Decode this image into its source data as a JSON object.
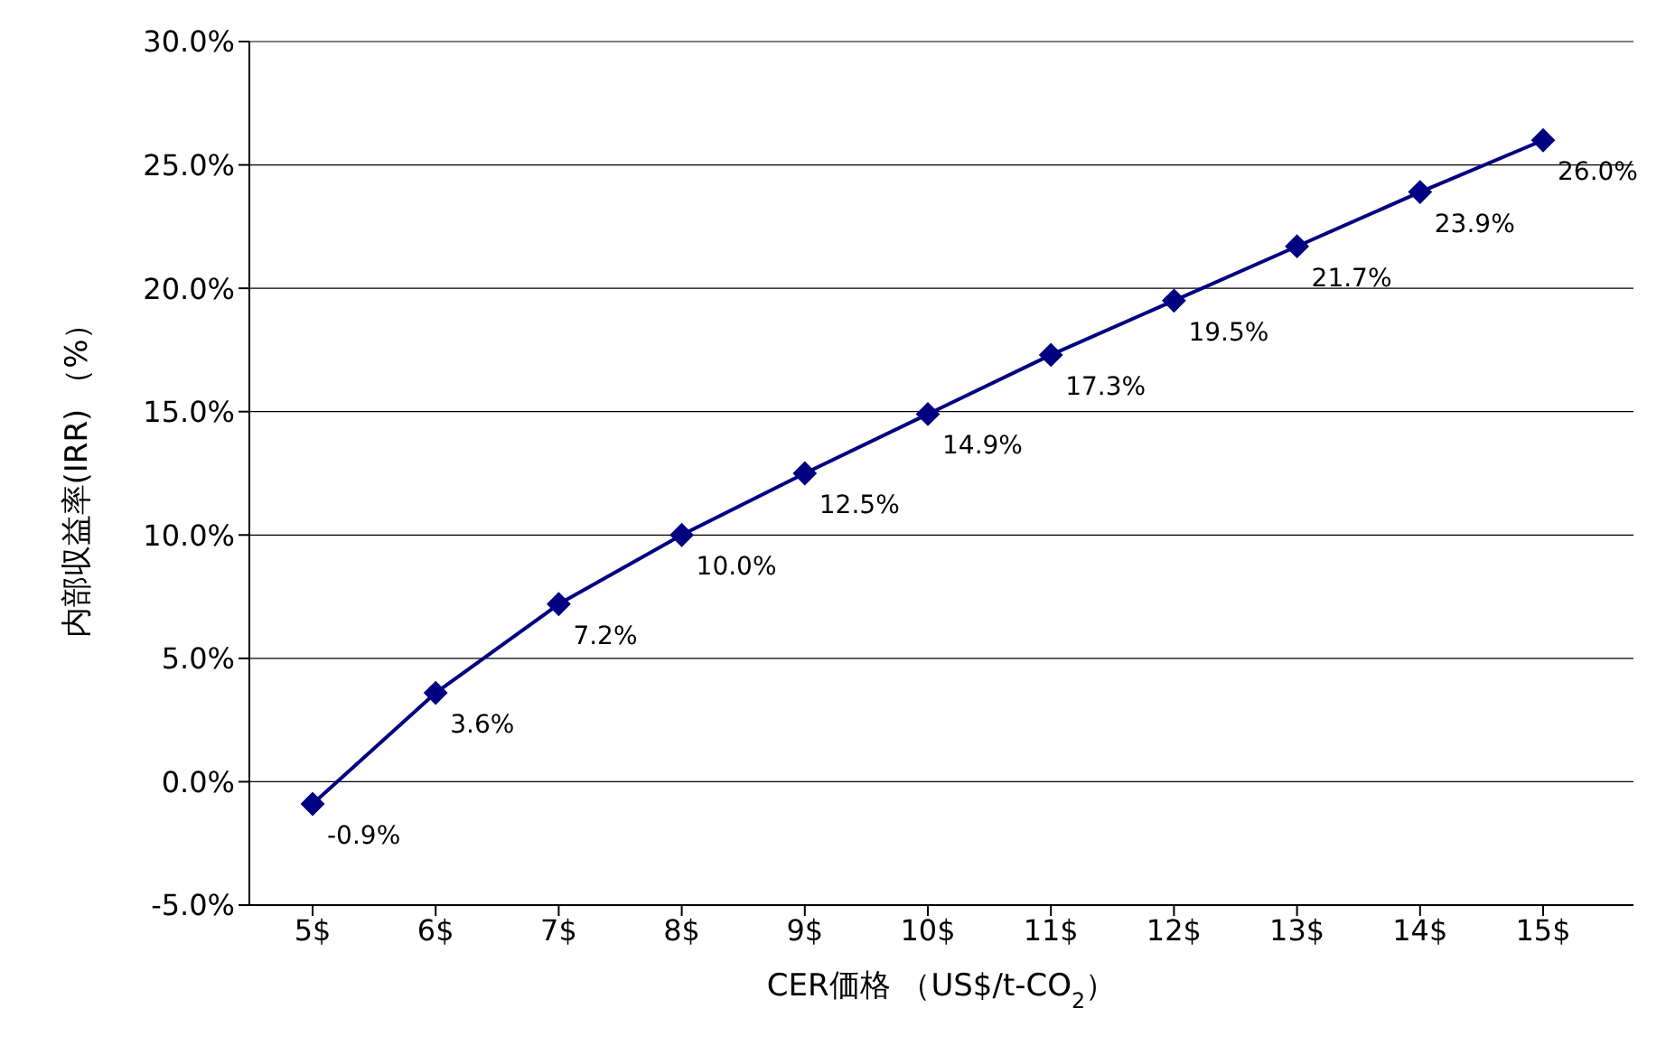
{
  "chart_data": {
    "type": "line",
    "xlabel": "CER価格 （US$/t-CO$_{2}$）",
    "ylabel": "内部収益率(IRR) （%）",
    "categories": [
      "5$",
      "6$",
      "7$",
      "8$",
      "9$",
      "10$",
      "11$",
      "12$",
      "13$",
      "14$",
      "15$"
    ],
    "series": [
      {
        "color": "#000080",
        "values": [
          -0.9,
          3.6,
          7.2,
          10.0,
          12.5,
          14.9,
          17.3,
          19.5,
          21.7,
          23.9,
          26.0
        ],
        "value_labels": [
          "-0.9%",
          "3.6%",
          "7.2%",
          "10.0%",
          "12.5%",
          "14.9%",
          "17.3%",
          "19.5%",
          "21.7%",
          "23.9%",
          "26.0%"
        ]
      }
    ],
    "ylim": [
      -5,
      30
    ],
    "yticks": [
      {
        "value": -5,
        "label": "-5.0%"
      },
      {
        "value": 0,
        "label": "0.0%"
      },
      {
        "value": 5,
        "label": "5.0%"
      },
      {
        "value": 10,
        "label": "10.0%"
      },
      {
        "value": 15,
        "label": "15.0%"
      },
      {
        "value": 20,
        "label": "20.0%"
      },
      {
        "value": 25,
        "label": "25.0%"
      },
      {
        "value": 30,
        "label": "30.0%"
      }
    ],
    "grid": "y",
    "marker": "diamond",
    "line_style": "solid",
    "legend": false
  }
}
